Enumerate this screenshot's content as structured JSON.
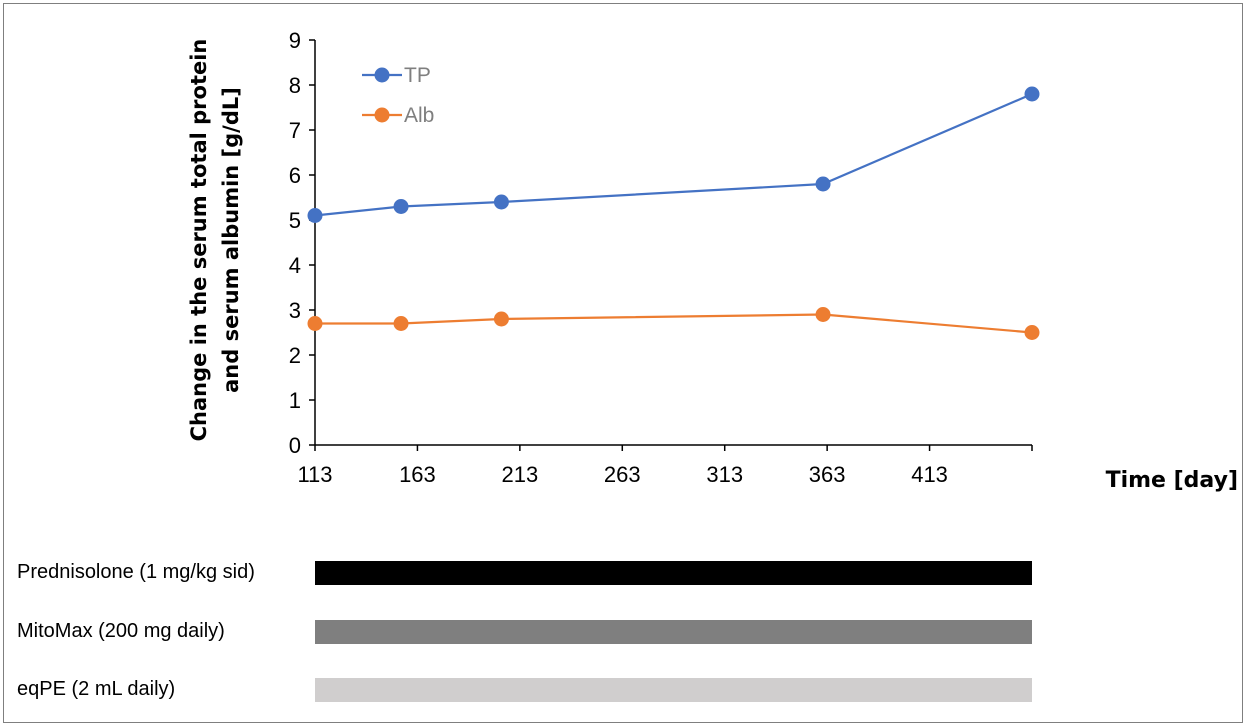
{
  "chart_data": {
    "type": "line",
    "xlabel": "Time [day]",
    "ylabel_lines": [
      "Change in the serum total protein",
      "and serum albumin [g/dL]"
    ],
    "xlim": [
      113,
      463
    ],
    "ylim": [
      0,
      9
    ],
    "xticks": [
      113,
      163,
      213,
      263,
      313,
      363,
      413
    ],
    "yticks": [
      0,
      1,
      2,
      3,
      4,
      5,
      6,
      7,
      8,
      9
    ],
    "legend_position": "top-left",
    "grid": false,
    "series": [
      {
        "name": "TP",
        "color": "#4472c4",
        "x": [
          113,
          155,
          204,
          361,
          463
        ],
        "y": [
          5.1,
          5.3,
          5.4,
          5.8,
          7.8
        ]
      },
      {
        "name": "Alb",
        "color": "#ed7d31",
        "x": [
          113,
          155,
          204,
          361,
          463
        ],
        "y": [
          2.7,
          2.7,
          2.8,
          2.9,
          2.5
        ]
      }
    ]
  },
  "treatments": [
    {
      "label": "Prednisolone (1 mg/kg sid)",
      "color": "#000000",
      "start": 113,
      "end": 463
    },
    {
      "label": "MitoMax (200 mg daily)",
      "color": "#7f7f7f",
      "start": 113,
      "end": 463
    },
    {
      "label": "eqPE (2 mL daily)",
      "color": "#d0cece",
      "start": 113,
      "end": 463
    }
  ]
}
